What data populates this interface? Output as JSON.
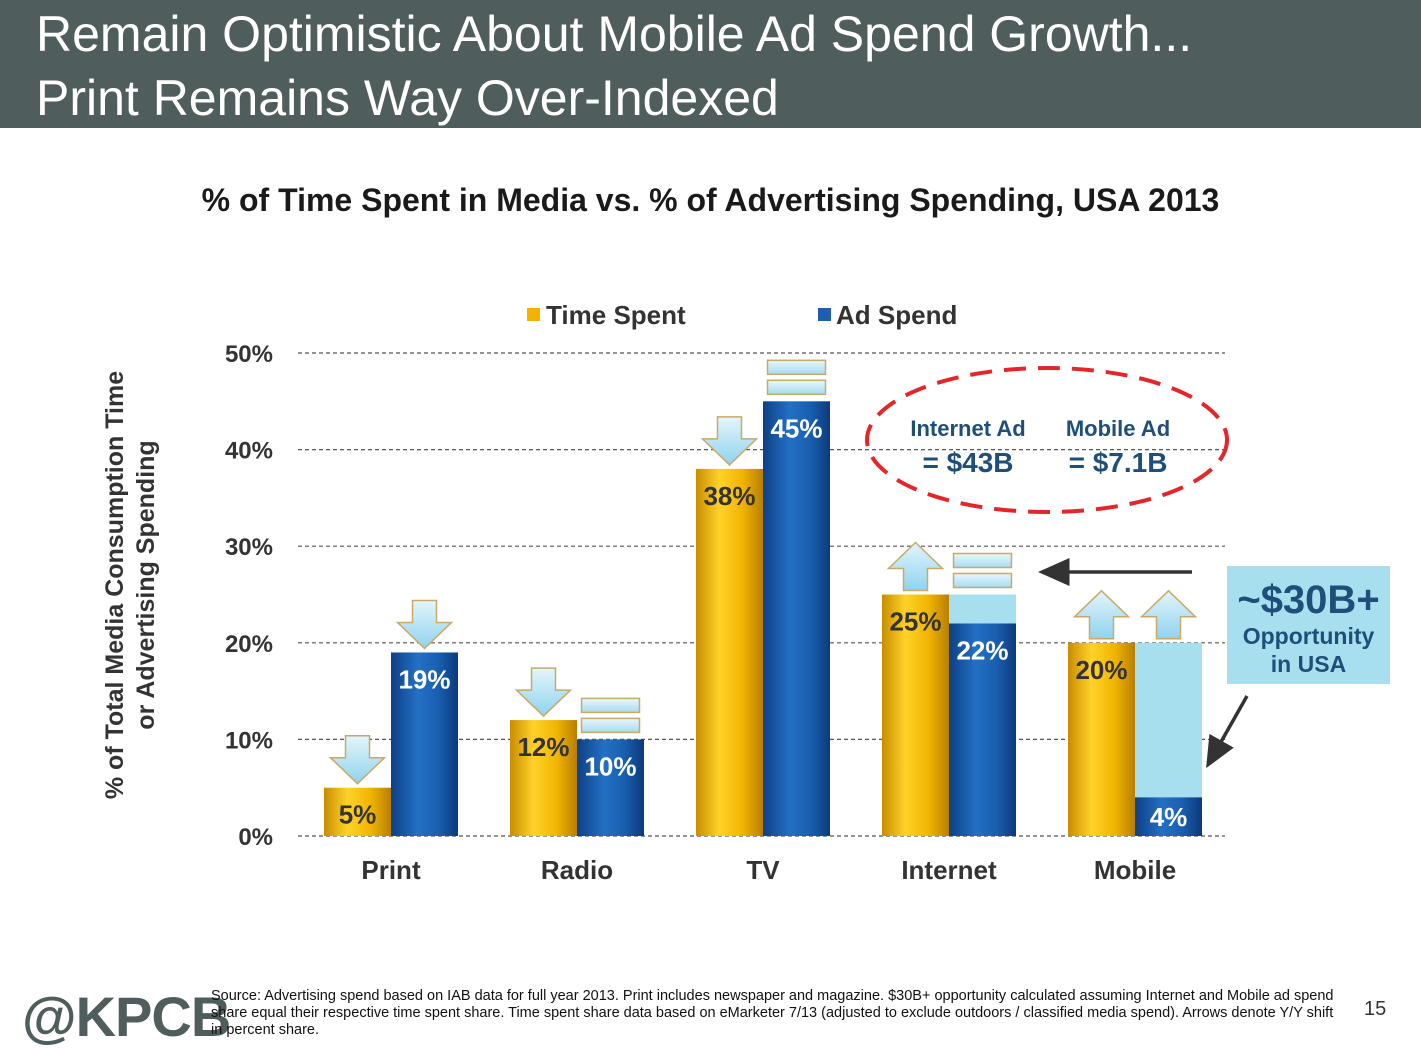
{
  "slide": {
    "title_line1": "Remain Optimistic About Mobile Ad Spend Growth...",
    "title_line2": "Print Remains Way Over-Indexed",
    "logo": "@KPCB",
    "source": "Source: Advertising spend based on IAB data for full year 2013. Print includes newspaper and magazine. $30B+ opportunity calculated assuming Internet and Mobile ad spend share equal their respective time spent share. Time spent share data based on eMarketer 7/13 (adjusted to exclude outdoors / classified media spend). Arrows denote Y/Y shift in percent share.",
    "page_number": "15"
  },
  "chart_data": {
    "type": "bar",
    "title": "% of Time Spent in Media vs. % of Advertising Spending, USA 2013",
    "ylabel": [
      "% of Total Media Consumption Time",
      "or Advertising Spending"
    ],
    "xlabel": "",
    "ylim": [
      0,
      50
    ],
    "yticks": [
      "0%",
      "10%",
      "20%",
      "30%",
      "40%",
      "50%"
    ],
    "grid": true,
    "legend_position": "top",
    "categories": [
      "Print",
      "Radio",
      "TV",
      "Internet",
      "Mobile"
    ],
    "series": [
      {
        "name": "Time Spent",
        "color": "#f0b400",
        "values": [
          5,
          12,
          38,
          25,
          20
        ],
        "labels": [
          "5%",
          "12%",
          "38%",
          "25%",
          "20%"
        ],
        "yoy_markers": [
          "down-arrow",
          "down-arrow",
          "down-arrow",
          "up-arrow",
          "up-arrow"
        ]
      },
      {
        "name": "Ad Spend",
        "color": "#1f5fae",
        "values": [
          19,
          10,
          45,
          22,
          4
        ],
        "labels": [
          "19%",
          "10%",
          "45%",
          "22%",
          "4%"
        ],
        "yoy_markers": [
          "down-arrow",
          "equal-sign",
          "equal-sign",
          "equal-sign",
          "up-arrow"
        ]
      }
    ],
    "opportunity_gap": {
      "color": "#a8dfee",
      "categories": [
        "Internet",
        "Mobile"
      ]
    },
    "annotations": {
      "oval": {
        "internet_label": "Internet Ad",
        "internet_value": "= $43B",
        "mobile_label": "Mobile Ad",
        "mobile_value": "= $7.1B",
        "border_color": "#e3262a"
      },
      "callout": {
        "value": "~$30B+",
        "line1": "Opportunity",
        "line2": "in USA"
      }
    }
  }
}
